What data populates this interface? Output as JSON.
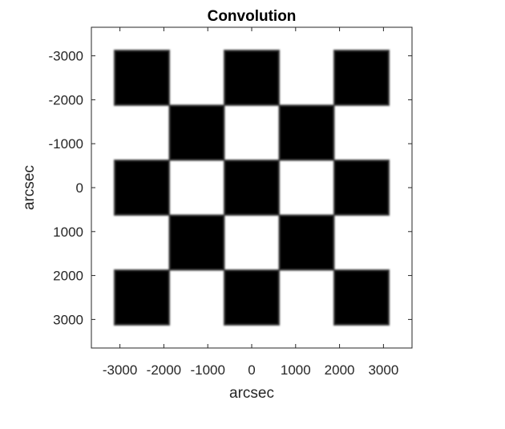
{
  "chart_data": {
    "type": "heatmap",
    "title": "Convolution",
    "xlabel": "arcsec",
    "ylabel": "arcsec",
    "xlim": [
      -3650,
      3650
    ],
    "ylim": [
      -3650,
      3650
    ],
    "y_direction": "reversed",
    "xticks": [
      -3000,
      -2000,
      -1000,
      0,
      1000,
      2000,
      3000
    ],
    "yticks": [
      -3000,
      -2000,
      -1000,
      0,
      1000,
      2000,
      3000
    ],
    "xtick_labels": [
      "-3000",
      "-2000",
      "-1000",
      "0",
      "1000",
      "2000",
      "3000"
    ],
    "ytick_labels": [
      "-3000",
      "-2000",
      "-1000",
      "0",
      "1000",
      "2000",
      "3000"
    ],
    "colormap": "gray",
    "background_color": "#ffffff",
    "square_color": "#000000",
    "pattern": "checkerboard",
    "cell_size": 1250,
    "grid_extent": [
      -3125,
      3125
    ],
    "grid_rows": 5,
    "grid_cols": 5,
    "dark_cells": [
      {
        "row": 0,
        "col": 0
      },
      {
        "row": 0,
        "col": 2
      },
      {
        "row": 0,
        "col": 4
      },
      {
        "row": 1,
        "col": 1
      },
      {
        "row": 1,
        "col": 3
      },
      {
        "row": 2,
        "col": 0
      },
      {
        "row": 2,
        "col": 2
      },
      {
        "row": 2,
        "col": 4
      },
      {
        "row": 3,
        "col": 1
      },
      {
        "row": 3,
        "col": 3
      },
      {
        "row": 4,
        "col": 0
      },
      {
        "row": 4,
        "col": 2
      },
      {
        "row": 4,
        "col": 4
      }
    ],
    "grid": false,
    "legend": "none"
  }
}
